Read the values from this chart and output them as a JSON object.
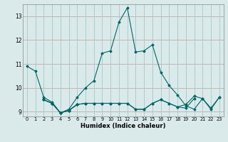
{
  "title": "",
  "xlabel": "Humidex (Indice chaleur)",
  "background_color": "#daeaea",
  "grid_color_h": "#c8b0b0",
  "grid_color_v": "#b8cccc",
  "line_color": "#006666",
  "xlim": [
    -0.5,
    23.5
  ],
  "ylim": [
    8.8,
    13.5
  ],
  "yticks": [
    9,
    10,
    11,
    12,
    13
  ],
  "xticks": [
    0,
    1,
    2,
    3,
    4,
    5,
    6,
    7,
    8,
    9,
    10,
    11,
    12,
    13,
    14,
    15,
    16,
    17,
    18,
    19,
    20,
    21,
    22,
    23
  ],
  "series": [
    [
      10.9,
      10.7,
      9.6,
      9.4,
      8.95,
      9.1,
      9.6,
      10.0,
      10.3,
      11.45,
      11.55,
      12.75,
      13.35,
      11.5,
      11.55,
      11.8,
      10.65,
      10.1,
      9.7,
      9.25,
      9.1,
      9.55,
      9.15,
      9.6
    ],
    [
      null,
      null,
      9.5,
      9.35,
      8.95,
      9.05,
      9.3,
      null,
      null,
      null,
      null,
      null,
      null,
      null,
      null,
      null,
      null,
      null,
      null,
      null,
      null,
      null,
      null,
      null
    ],
    [
      null,
      null,
      9.5,
      9.35,
      8.95,
      9.05,
      9.3,
      9.35,
      9.35,
      9.35,
      9.35,
      9.35,
      9.35,
      9.1,
      9.1,
      9.35,
      9.5,
      9.35,
      9.2,
      9.15,
      9.55,
      null,
      null,
      null
    ],
    [
      null,
      null,
      9.5,
      9.35,
      8.95,
      9.05,
      9.3,
      9.35,
      9.35,
      9.35,
      9.35,
      9.35,
      9.35,
      9.1,
      9.1,
      9.35,
      9.5,
      9.35,
      9.2,
      9.3,
      9.65,
      9.55,
      9.1,
      9.6
    ]
  ]
}
